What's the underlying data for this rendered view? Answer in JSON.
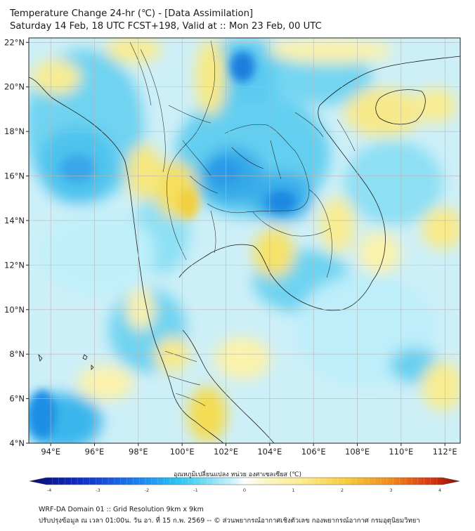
{
  "title": {
    "line1": "Temperature Change 24-hr (℃) - [Data Assimilation]",
    "line2": "Saturday 14 Feb, 18 UTC FCST+198, Valid at :: Mon 23 Feb, 00 UTC"
  },
  "map": {
    "lat_labels": [
      "22°N",
      "20°N",
      "18°N",
      "16°N",
      "14°N",
      "12°N",
      "10°N",
      "8°N",
      "6°N",
      "4°N"
    ],
    "lon_labels": [
      "94°E",
      "96°E",
      "98°E",
      "100°E",
      "102°E",
      "104°E",
      "106°E",
      "108°E",
      "110°E",
      "112°E"
    ],
    "lat_range": [
      4,
      22.2
    ],
    "lon_range": [
      93,
      112.7
    ],
    "grid": true,
    "field": "24-hr temperature change (°C)"
  },
  "colorbar": {
    "title": "อุณหภูมิเปลี่ยนแปลง หน่วย องศาเซลเซียส (℃)",
    "range": [
      -4,
      4
    ],
    "ticks": [
      "-4",
      "-3",
      "-2",
      "-1",
      "0",
      "1",
      "2",
      "3",
      "4"
    ],
    "colors": [
      "#0a0a6e",
      "#1030c8",
      "#1c7ff0",
      "#2ec8f2",
      "#8fe4f6",
      "#d8f6fb",
      "#ffffff",
      "#fbf6c4",
      "#fbe98a",
      "#f8c93a",
      "#f08a1c",
      "#d83a12",
      "#8e0a06"
    ]
  },
  "footer": {
    "line1": "WRF-DA Domain 01 :: Grid Resolution 9km x 9km",
    "line2": "ปรับปรุงข้อมูล ณ เวลา 01:00น. วัน อา. ที่ 15 ก.พ. 2569 -- © ส่วนพยากรณ์อากาศเชิงตัวเลข กองพยากรณ์อากาศ กรมอุตุนิยมวิทยา"
  }
}
